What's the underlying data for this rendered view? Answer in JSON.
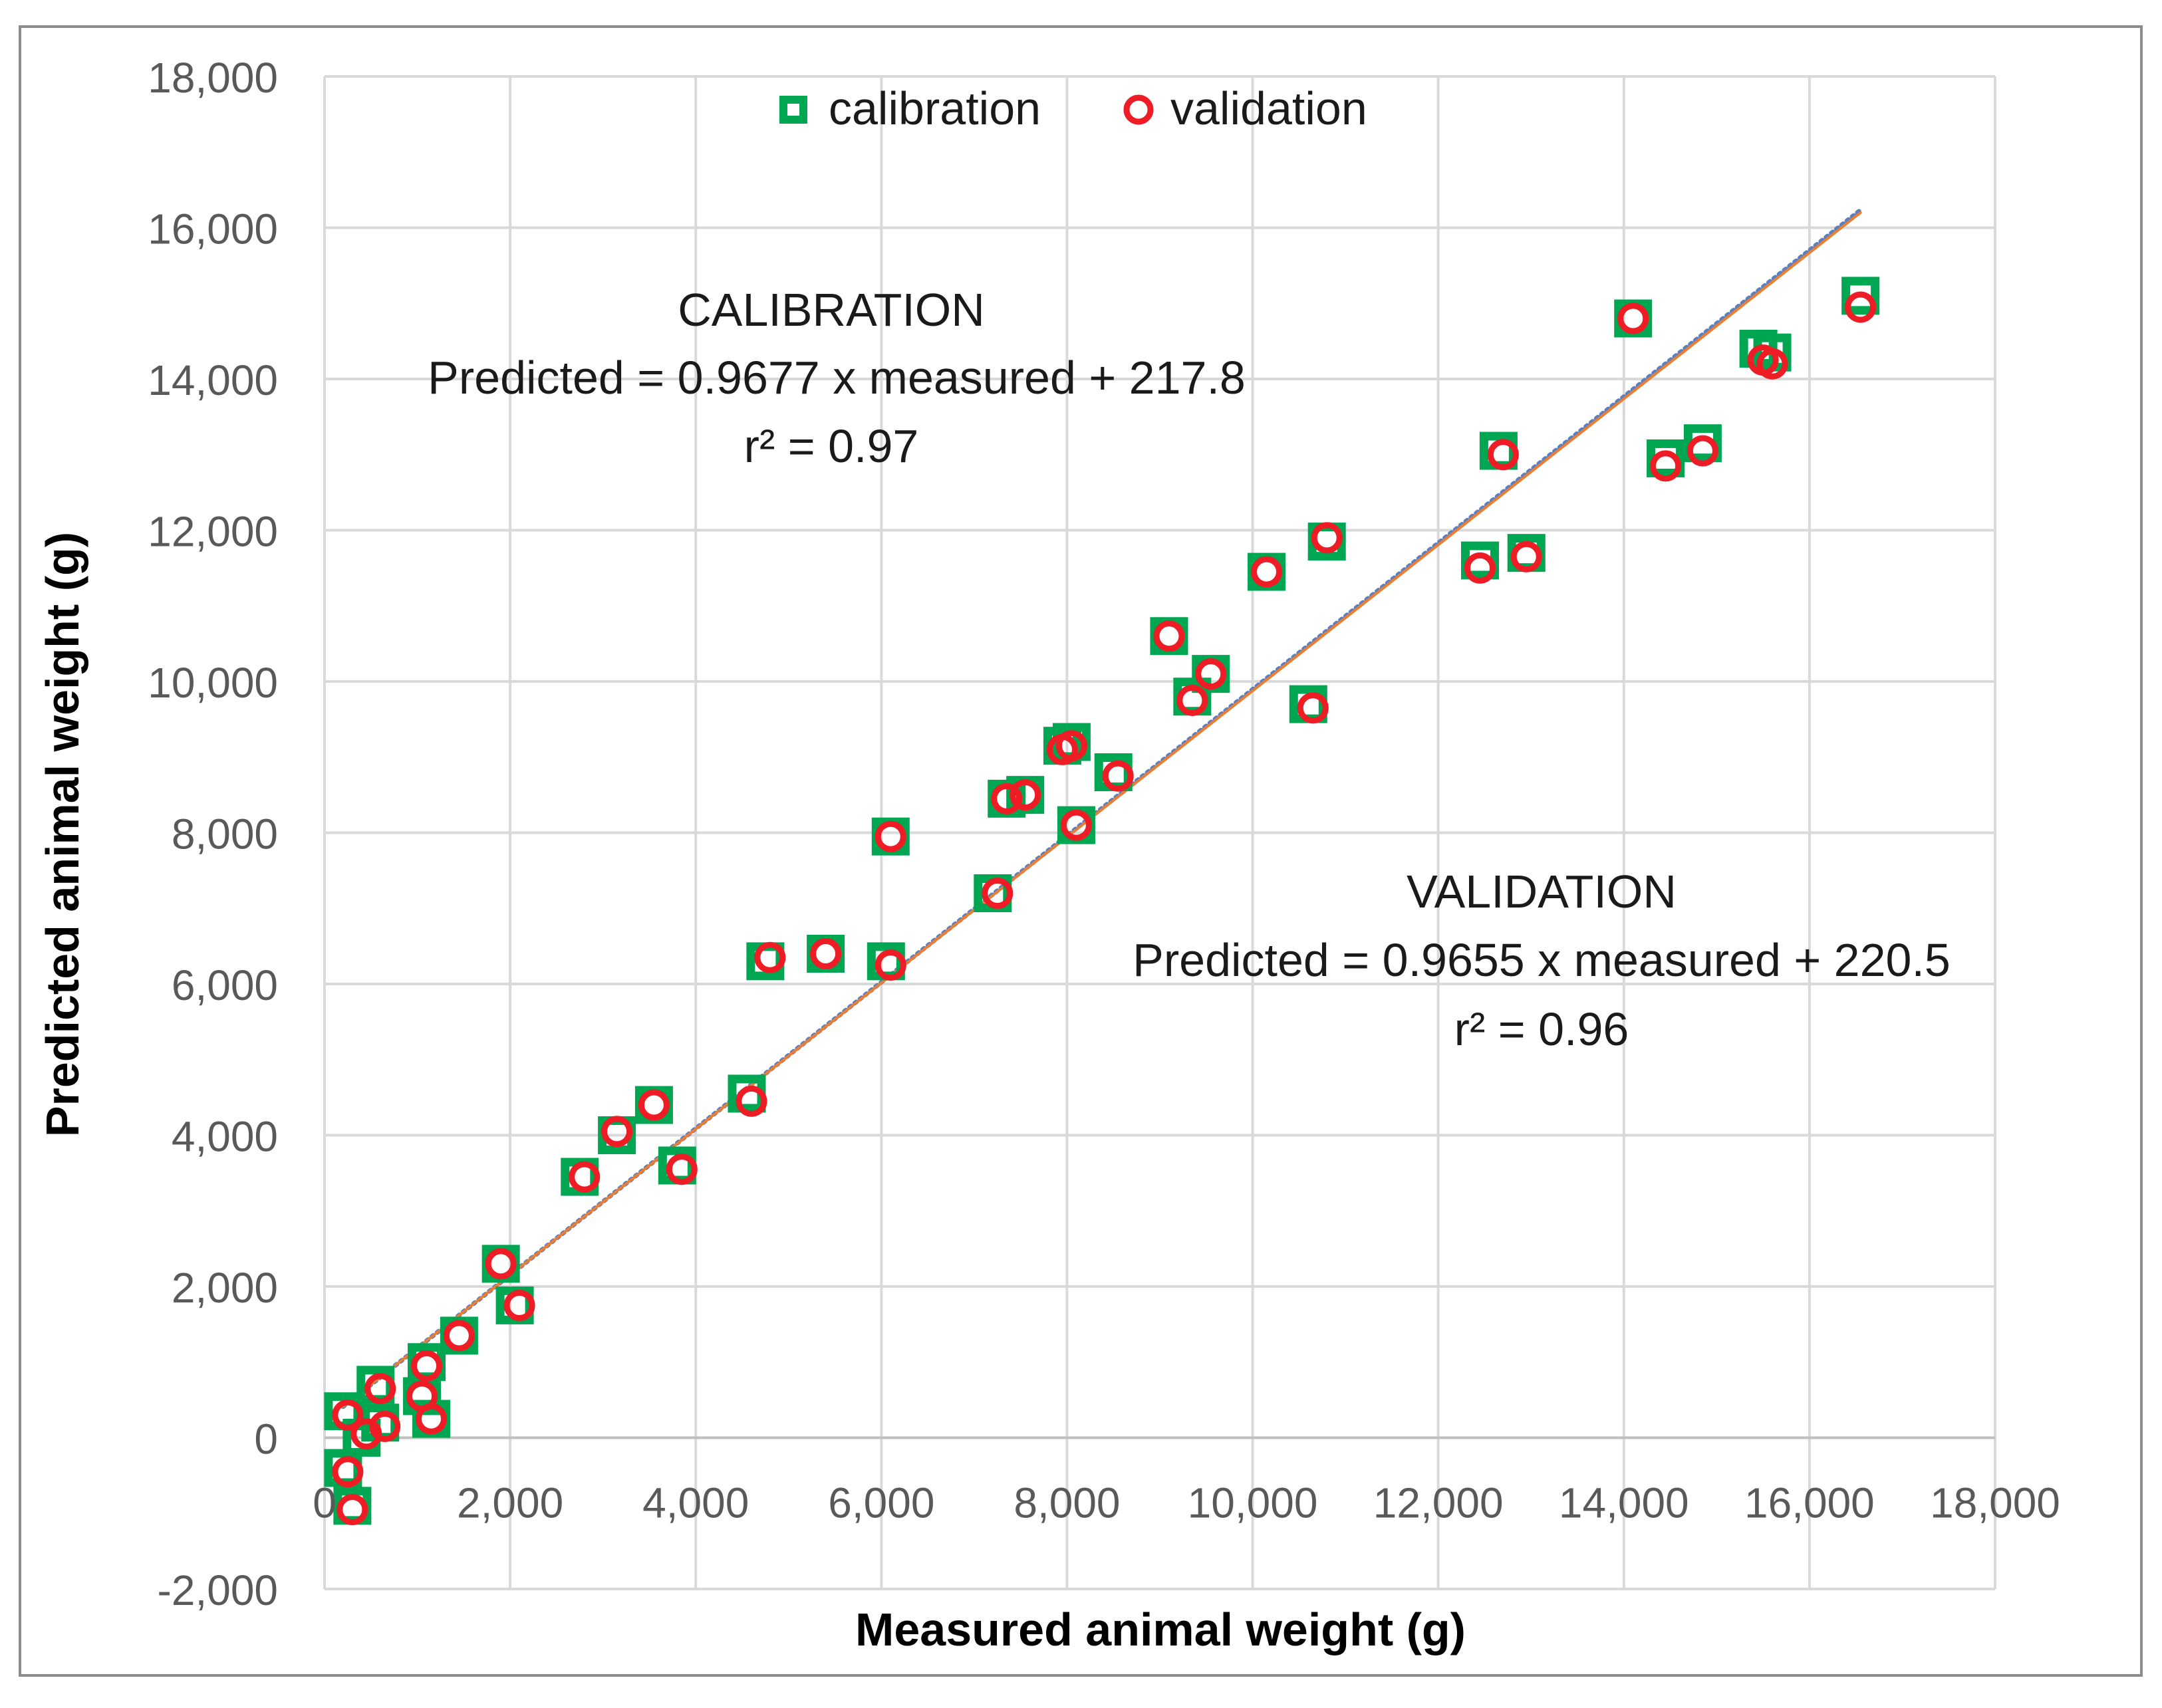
{
  "chart_data": {
    "type": "scatter",
    "xlabel": "Measured animal weight (g)",
    "ylabel": "Predicted animal weight (g)",
    "xlim": [
      0,
      18000
    ],
    "ylim": [
      -2000,
      18000
    ],
    "x_ticks": [
      0,
      2000,
      4000,
      6000,
      8000,
      10000,
      12000,
      14000,
      16000,
      18000
    ],
    "y_ticks": [
      -2000,
      0,
      2000,
      4000,
      6000,
      8000,
      10000,
      12000,
      14000,
      16000,
      18000
    ],
    "x_tick_labels": [
      "0",
      "2,000",
      "4,000",
      "6,000",
      "8,000",
      "10,000",
      "12,000",
      "14,000",
      "16,000",
      "18,000"
    ],
    "y_tick_labels": [
      "-2,000",
      "0",
      "2,000",
      "4,000",
      "6,000",
      "8,000",
      "10,000",
      "12,000",
      "14,000",
      "16,000",
      "18,000"
    ],
    "grid": true,
    "legend_position": "top-center",
    "series": [
      {
        "name": "calibration",
        "marker": "square",
        "color": "#00a651",
        "points": [
          [
            200,
            350
          ],
          [
            200,
            -400
          ],
          [
            300,
            -900
          ],
          [
            400,
            0
          ],
          [
            550,
            700
          ],
          [
            600,
            200
          ],
          [
            1050,
            550
          ],
          [
            1100,
            1000
          ],
          [
            1150,
            250
          ],
          [
            1450,
            1350
          ],
          [
            1900,
            2300
          ],
          [
            2050,
            1750
          ],
          [
            2750,
            3450
          ],
          [
            3150,
            4000
          ],
          [
            3550,
            4400
          ],
          [
            3800,
            3600
          ],
          [
            4550,
            4550
          ],
          [
            4750,
            6300
          ],
          [
            5400,
            6400
          ],
          [
            6050,
            6300
          ],
          [
            6100,
            7950
          ],
          [
            7200,
            7200
          ],
          [
            7350,
            8450
          ],
          [
            7550,
            8500
          ],
          [
            7950,
            9150
          ],
          [
            8050,
            9200
          ],
          [
            8100,
            8100
          ],
          [
            8500,
            8800
          ],
          [
            9100,
            10600
          ],
          [
            9350,
            9800
          ],
          [
            9550,
            10100
          ],
          [
            10150,
            11450
          ],
          [
            10600,
            9700
          ],
          [
            10800,
            11850
          ],
          [
            12450,
            11600
          ],
          [
            12650,
            13050
          ],
          [
            12950,
            11700
          ],
          [
            14100,
            14800
          ],
          [
            14450,
            12950
          ],
          [
            14850,
            13150
          ],
          [
            15450,
            14400
          ],
          [
            15600,
            14350
          ],
          [
            16550,
            15100
          ]
        ]
      },
      {
        "name": "validation",
        "marker": "circle",
        "color": "#ee1c25",
        "points": [
          [
            250,
            300
          ],
          [
            250,
            -450
          ],
          [
            300,
            -950
          ],
          [
            450,
            50
          ],
          [
            600,
            650
          ],
          [
            650,
            150
          ],
          [
            1050,
            550
          ],
          [
            1100,
            950
          ],
          [
            1150,
            250
          ],
          [
            1450,
            1350
          ],
          [
            1900,
            2300
          ],
          [
            2100,
            1750
          ],
          [
            2800,
            3450
          ],
          [
            3150,
            4050
          ],
          [
            3550,
            4400
          ],
          [
            3850,
            3550
          ],
          [
            4600,
            4450
          ],
          [
            4800,
            6350
          ],
          [
            5400,
            6400
          ],
          [
            6100,
            6250
          ],
          [
            6100,
            7950
          ],
          [
            7250,
            7200
          ],
          [
            7350,
            8450
          ],
          [
            7550,
            8500
          ],
          [
            7950,
            9100
          ],
          [
            8050,
            9150
          ],
          [
            8100,
            8100
          ],
          [
            8550,
            8750
          ],
          [
            9100,
            10600
          ],
          [
            9350,
            9750
          ],
          [
            9550,
            10100
          ],
          [
            10150,
            11450
          ],
          [
            10650,
            9650
          ],
          [
            10800,
            11900
          ],
          [
            12450,
            11500
          ],
          [
            12700,
            13000
          ],
          [
            12950,
            11650
          ],
          [
            14100,
            14800
          ],
          [
            14450,
            12850
          ],
          [
            14850,
            13050
          ],
          [
            15500,
            14250
          ],
          [
            15600,
            14200
          ],
          [
            16550,
            14950
          ]
        ]
      }
    ],
    "fit_lines": [
      {
        "label": "calibration fit",
        "slope": 0.9677,
        "intercept": 217.8,
        "x_range": [
          200,
          16550
        ],
        "color": "#5b7fbf"
      },
      {
        "label": "validation fit",
        "slope": 0.9655,
        "intercept": 220.5,
        "x_range": [
          200,
          16550
        ],
        "color": "#ed7d31"
      }
    ],
    "annotations": {
      "calibration_title": "CALIBRATION",
      "calibration_equation": "Predicted = 0.9677 x measured + 217.8",
      "calibration_r2": "r² = 0.97",
      "validation_title": "VALIDATION",
      "validation_equation": "Predicted = 0.9655 x measured + 220.5",
      "validation_r2": "r² = 0.96"
    }
  }
}
